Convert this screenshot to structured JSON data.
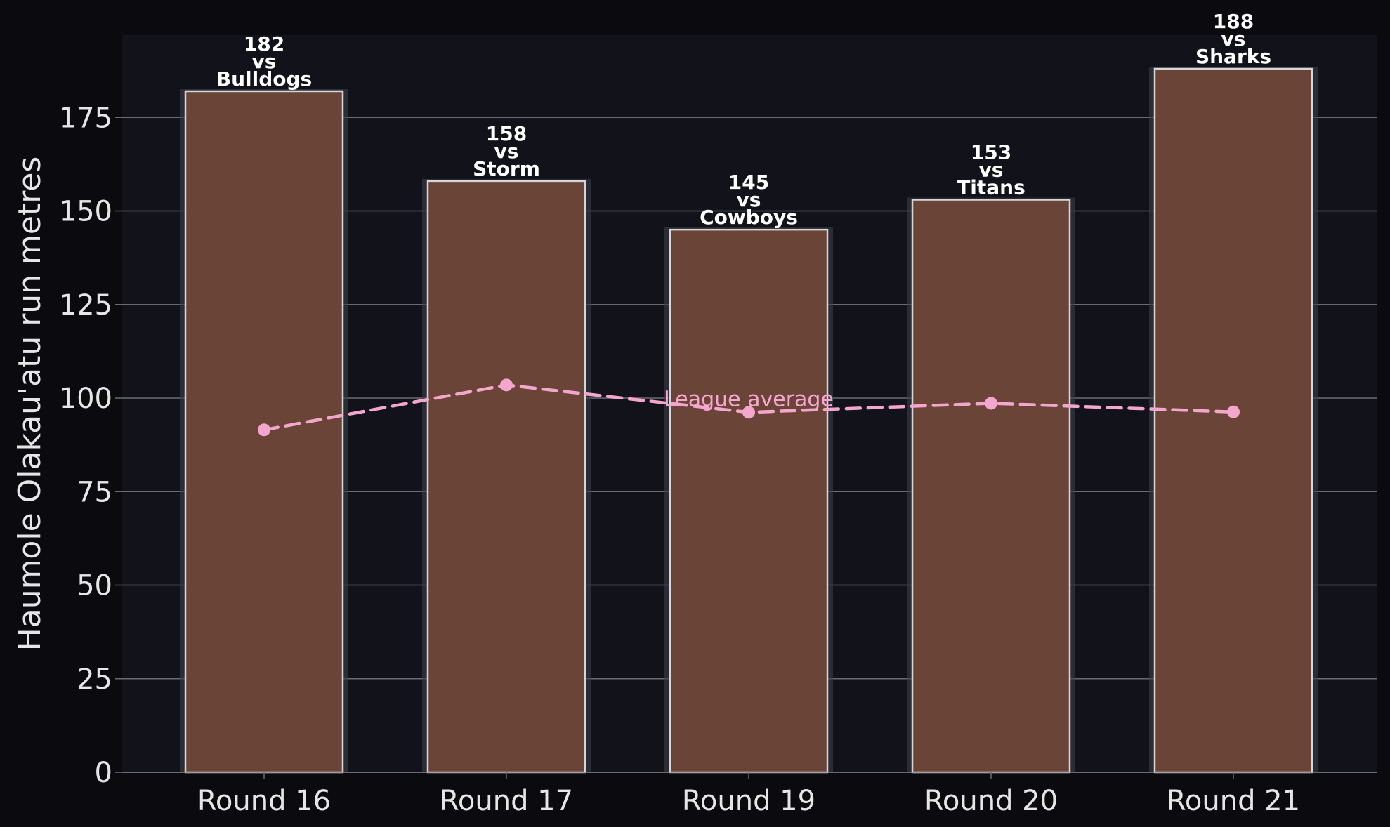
{
  "chart_data": {
    "type": "bar",
    "categories": [
      "Round 16",
      "Round 17",
      "Round 19",
      "Round 20",
      "Round 21"
    ],
    "series": [
      {
        "values": [
          182,
          158,
          145,
          153,
          188
        ],
        "opponents": [
          "Bulldogs",
          "Storm",
          "Cowboys",
          "Titans",
          "Sharks"
        ]
      },
      {
        "name": "League average",
        "type": "line",
        "style": "dashed",
        "values": [
          91.5,
          103.5,
          96.2,
          98.6,
          96.3
        ]
      }
    ],
    "versus_word": "vs",
    "ylabel": "Haumole Olakau'atu run metres",
    "ylim": [
      0,
      197
    ],
    "yticks": [
      0,
      25,
      50,
      75,
      100,
      125,
      150,
      175
    ],
    "grid": "horizontal",
    "colors": {
      "page_background": "#0b0b0f",
      "plot_background": "#11121a",
      "bar_fill": "#6b4438",
      "bar_edge": "#d6d6d6",
      "bar_glow": "#3c3e4a",
      "average_line": "#f4a6cf",
      "grid": "#6a6a72",
      "text": "#e6e6e6"
    }
  }
}
